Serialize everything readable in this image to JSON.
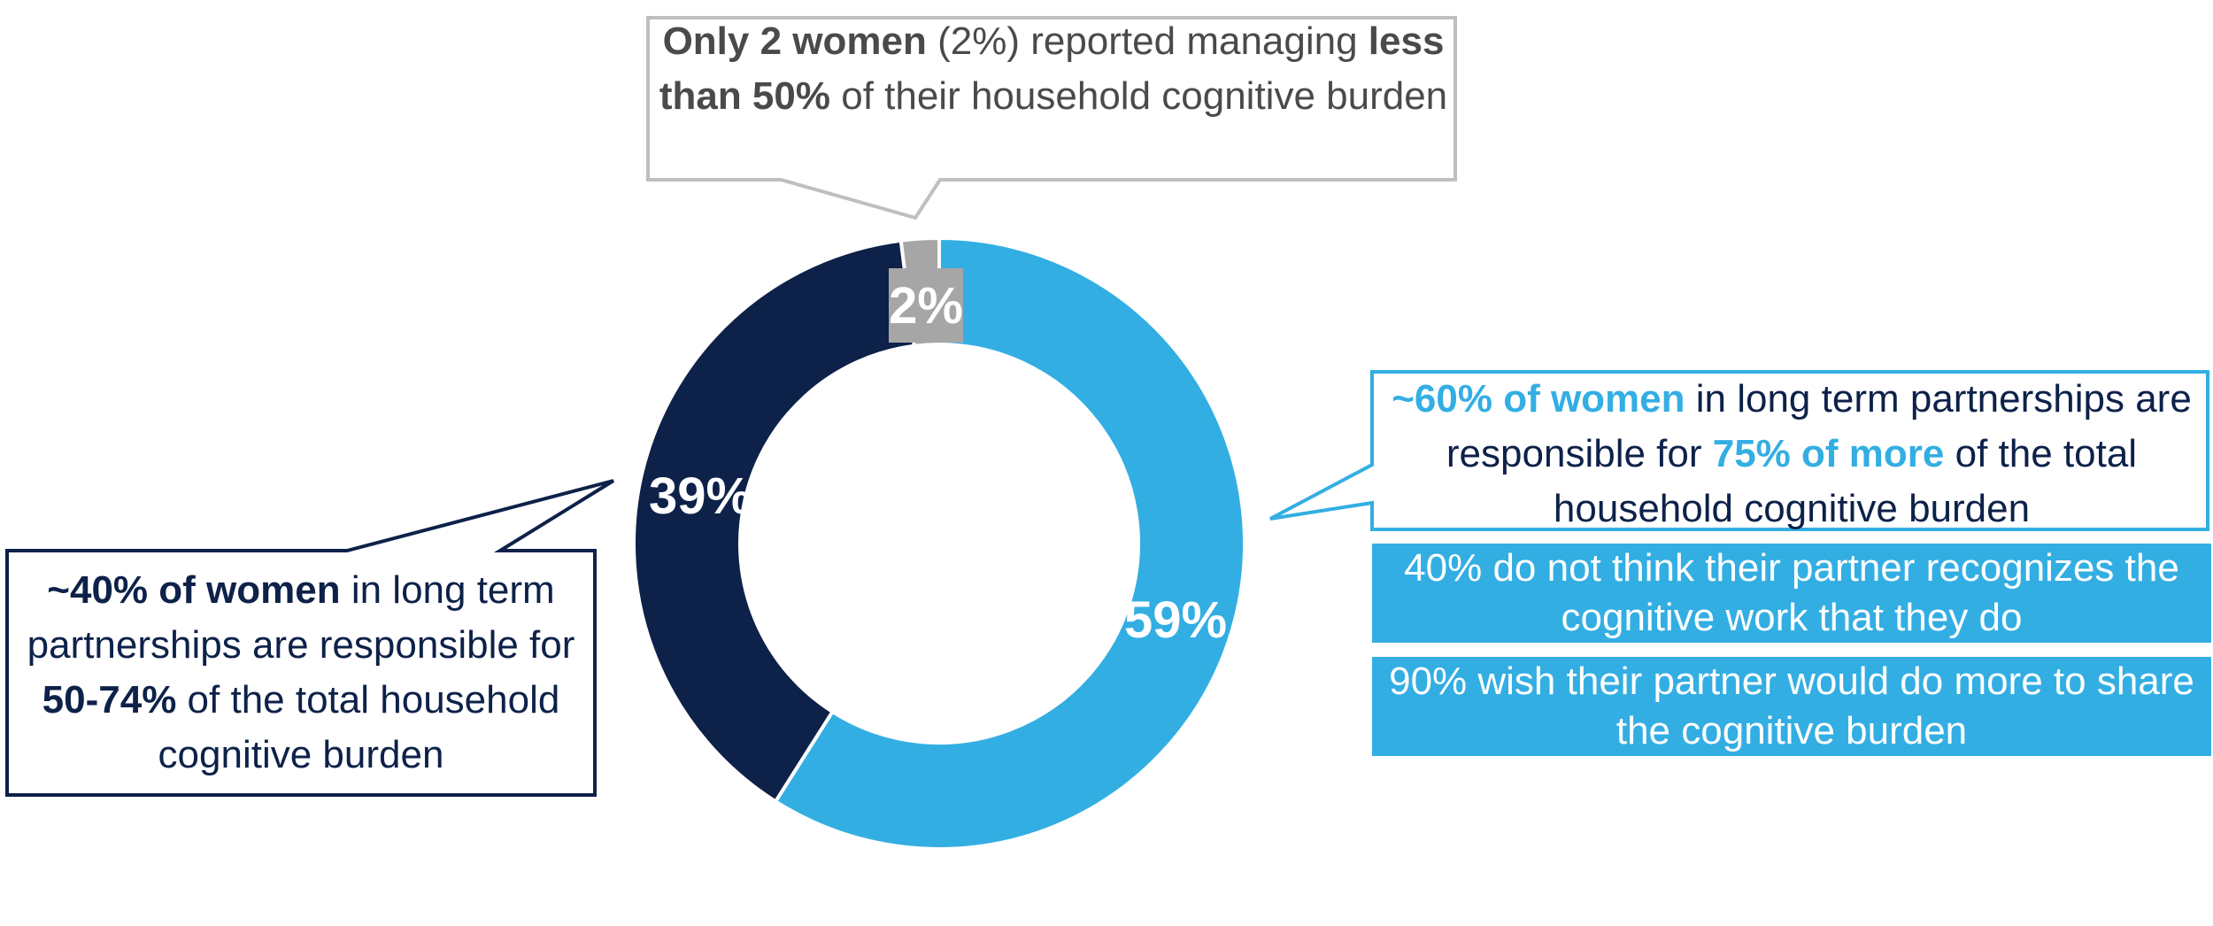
{
  "chart_data": {
    "type": "pie",
    "variant": "donut",
    "slices": [
      {
        "label": "59%",
        "value": 59,
        "color": "#33aee3"
      },
      {
        "label": "39%",
        "value": 39,
        "color": "#0d2149"
      },
      {
        "label": "2%",
        "value": 2,
        "color": "#a6a6a6"
      }
    ]
  },
  "callouts": {
    "top": {
      "parts": [
        {
          "text": "Only 2 women",
          "bold": true
        },
        {
          "text": " (2%) reported managing ",
          "bold": false
        },
        {
          "text": "less than 50%",
          "bold": true
        },
        {
          "text": " of their household cognitive burden",
          "bold": false
        }
      ],
      "color": "#4a4a4a",
      "border": "#bfbfbf"
    },
    "left": {
      "parts": [
        {
          "text": "~40% of women",
          "bold": true
        },
        {
          "text": " in long term partnerships are responsible for ",
          "bold": false
        },
        {
          "text": "50-74%",
          "bold": true
        },
        {
          "text": " of the total household cognitive burden",
          "bold": false
        }
      ],
      "color": "#0d2149",
      "border": "#0d2149"
    },
    "right": {
      "parts": [
        {
          "text": "~60% of women",
          "bold": true,
          "accent": true
        },
        {
          "text": " in long term partnerships are responsible for ",
          "bold": false
        },
        {
          "text": "75% of more",
          "bold": true,
          "accent": true
        },
        {
          "text": " of the total household cognitive burden",
          "bold": false
        }
      ],
      "color": "#0d2149",
      "accent": "#33aee3",
      "border": "#33aee3"
    }
  },
  "facts": [
    "40% do not think their partner recognizes the cognitive work that they do",
    "90% wish their partner would do more to share the cognitive burden"
  ]
}
